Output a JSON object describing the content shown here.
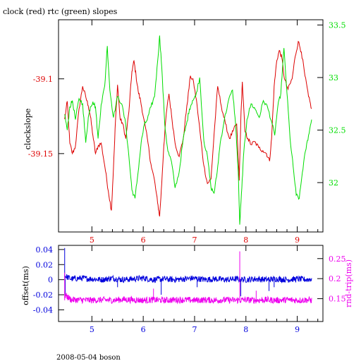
{
  "page_title": "clock (red) rtc (green) slopes",
  "footer": "2008-05-04 boson",
  "colors": {
    "clock": "#dd0000",
    "rtc": "#00dd00",
    "offset": "#0000dd",
    "rndtrip": "#ee00ee",
    "frame": "#000000"
  },
  "chart_data": [
    {
      "type": "line",
      "title": "clock (red) rtc (green) slopes",
      "xlim": [
        4.35,
        9.5
      ],
      "x_ticks": [
        5,
        6,
        7,
        8,
        9
      ],
      "x_tick_labels": [
        "5",
        "6",
        "7",
        "8",
        "9"
      ],
      "left_axis": {
        "label": "clockslope",
        "ylim": [
          -39.2024,
          -39.0605
        ],
        "ticks": [
          -39.15,
          -39.1
        ],
        "tick_labels": [
          "-39.15",
          "-39.1"
        ],
        "color": "#dd0000"
      },
      "right_axis": {
        "label": "",
        "ylim": [
          31.53,
          33.55
        ],
        "ticks": [
          32,
          32.5,
          33,
          33.5
        ],
        "tick_labels": [
          "32",
          "32.5",
          "33",
          "33.5"
        ],
        "color": "#00dd00"
      },
      "series": [
        {
          "axis": "left",
          "color": "#dd0000",
          "x": [
            4.47,
            4.52,
            4.57,
            4.62,
            4.68,
            4.75,
            4.82,
            4.88,
            4.93,
            4.97,
            5.02,
            5.07,
            5.12,
            5.18,
            5.25,
            5.32,
            5.38,
            5.42,
            5.46,
            5.5,
            5.55,
            5.6,
            5.66,
            5.72,
            5.78,
            5.82,
            5.86,
            5.9,
            5.95,
            6.0,
            6.08,
            6.15,
            6.22,
            6.28,
            6.32,
            6.36,
            6.4,
            6.45,
            6.5,
            6.55,
            6.62,
            6.7,
            6.78,
            6.85,
            6.92,
            6.98,
            7.05,
            7.12,
            7.18,
            7.25,
            7.32,
            7.38,
            7.45,
            7.52,
            7.6,
            7.68,
            7.75,
            7.82,
            7.87,
            7.9,
            7.93,
            7.98,
            8.04,
            8.1,
            8.17,
            8.25,
            8.33,
            8.4,
            8.46,
            8.5,
            8.55,
            8.6,
            8.65,
            8.7,
            8.75,
            8.82,
            8.9,
            8.96,
            9.02,
            9.08,
            9.15,
            9.22,
            9.28
          ],
          "y": [
            -39.127,
            -39.115,
            -39.143,
            -39.15,
            -39.145,
            -39.12,
            -39.105,
            -39.112,
            -39.118,
            -39.125,
            -39.138,
            -39.15,
            -39.145,
            -39.143,
            -39.158,
            -39.175,
            -39.188,
            -39.16,
            -39.128,
            -39.104,
            -39.127,
            -39.13,
            -39.14,
            -39.122,
            -39.095,
            -39.088,
            -39.098,
            -39.108,
            -39.115,
            -39.125,
            -39.14,
            -39.157,
            -39.168,
            -39.183,
            -39.192,
            -39.17,
            -39.145,
            -39.123,
            -39.11,
            -39.124,
            -39.143,
            -39.152,
            -39.14,
            -39.118,
            -39.098,
            -39.102,
            -39.118,
            -39.14,
            -39.158,
            -39.17,
            -39.167,
            -39.137,
            -39.105,
            -39.118,
            -39.13,
            -39.14,
            -39.135,
            -39.13,
            -39.168,
            -39.128,
            -39.102,
            -39.135,
            -39.14,
            -39.144,
            -39.142,
            -39.146,
            -39.148,
            -39.15,
            -39.155,
            -39.14,
            -39.105,
            -39.088,
            -39.081,
            -39.086,
            -39.1,
            -39.107,
            -39.1,
            -39.085,
            -39.075,
            -39.082,
            -39.098,
            -39.112,
            -39.12
          ]
        },
        {
          "axis": "right",
          "color": "#00dd00",
          "x": [
            4.47,
            4.52,
            4.57,
            4.62,
            4.68,
            4.75,
            4.82,
            4.88,
            4.93,
            4.97,
            5.02,
            5.07,
            5.12,
            5.18,
            5.25,
            5.3,
            5.35,
            5.42,
            5.5,
            5.58,
            5.66,
            5.72,
            5.78,
            5.84,
            5.9,
            5.96,
            6.02,
            6.08,
            6.15,
            6.22,
            6.28,
            6.32,
            6.36,
            6.42,
            6.48,
            6.55,
            6.62,
            6.7,
            6.78,
            6.84,
            6.9,
            6.96,
            7.02,
            7.1,
            7.18,
            7.25,
            7.32,
            7.38,
            7.44,
            7.5,
            7.58,
            7.66,
            7.74,
            7.8,
            7.85,
            7.88,
            7.92,
            7.96,
            8.02,
            8.1,
            8.18,
            8.26,
            8.34,
            8.42,
            8.5,
            8.56,
            8.62,
            8.68,
            8.74,
            8.8,
            8.86,
            8.92,
            8.98,
            9.04,
            9.1,
            9.16,
            9.22,
            9.28
          ],
          "y": [
            32.65,
            32.5,
            32.72,
            32.78,
            32.6,
            32.8,
            32.75,
            32.38,
            32.62,
            32.72,
            32.77,
            32.72,
            32.42,
            32.74,
            32.92,
            33.3,
            32.88,
            32.62,
            32.82,
            32.75,
            32.55,
            32.25,
            31.93,
            31.85,
            32.1,
            32.38,
            32.55,
            32.6,
            32.72,
            32.82,
            33.15,
            33.4,
            33.1,
            32.55,
            32.3,
            32.2,
            31.95,
            32.1,
            32.42,
            32.55,
            32.7,
            32.78,
            32.82,
            33.0,
            32.4,
            32.25,
            31.95,
            31.9,
            32.1,
            32.38,
            32.6,
            32.78,
            32.88,
            32.55,
            32.1,
            31.6,
            31.95,
            32.3,
            32.6,
            32.75,
            32.7,
            32.62,
            32.78,
            32.72,
            32.58,
            32.45,
            32.72,
            32.85,
            33.28,
            32.85,
            32.42,
            32.15,
            31.88,
            31.85,
            32.1,
            32.3,
            32.45,
            32.6
          ]
        }
      ]
    },
    {
      "type": "line",
      "xlim": [
        4.35,
        9.5
      ],
      "x_ticks": [
        5,
        6,
        7,
        8,
        9
      ],
      "x_tick_labels": [
        "5",
        "6",
        "7",
        "8",
        "9"
      ],
      "left_axis": {
        "label": "offset(ms)",
        "ylim": [
          -0.0555,
          0.0455
        ],
        "ticks": [
          -0.04,
          -0.02,
          0,
          0.02,
          0.04
        ],
        "tick_labels": [
          "-0.04",
          "-0.02",
          "0",
          "0.02",
          "0.04"
        ],
        "color": "#0000dd"
      },
      "right_axis": {
        "label": "rnd-trip(ms)",
        "ylim": [
          0.093,
          0.283
        ],
        "ticks": [
          0.15,
          0.2,
          0.25
        ],
        "tick_labels": [
          "0.15",
          "0.2",
          "0.25"
        ],
        "color": "#ee00ee"
      },
      "series": [
        {
          "axis": "left",
          "color": "#0000dd",
          "x": [
            4.47,
            4.6,
            4.8,
            5.0,
            5.2,
            5.4,
            5.6,
            5.8,
            6.0,
            6.2,
            6.4,
            6.6,
            6.8,
            7.0,
            7.2,
            7.4,
            7.6,
            7.8,
            8.0,
            8.2,
            8.4,
            8.6,
            8.8,
            9.0,
            9.2,
            9.28
          ],
          "y": [
            0.005,
            0.001,
            0.002,
            0.001,
            0.0,
            0.002,
            0.0,
            0.001,
            0.002,
            0.0,
            0.001,
            0.0,
            0.001,
            0.002,
            0.0,
            0.001,
            0.0,
            0.001,
            0.0,
            0.001,
            0.0,
            0.001,
            0.0,
            0.001,
            0.0,
            0.001
          ],
          "noise": 0.004,
          "base_mean": 0.001,
          "spikes": [
            {
              "x": 4.47,
              "y": 0.042
            },
            {
              "x": 4.48,
              "y": -0.024
            },
            {
              "x": 5.5,
              "y": -0.01
            },
            {
              "x": 6.35,
              "y": -0.02
            },
            {
              "x": 7.05,
              "y": -0.01
            },
            {
              "x": 7.9,
              "y": -0.022
            },
            {
              "x": 8.45,
              "y": -0.015
            },
            {
              "x": 8.55,
              "y": -0.01
            }
          ]
        },
        {
          "axis": "right",
          "color": "#ee00ee",
          "x": [
            4.47,
            4.6,
            4.8,
            5.0,
            5.2,
            5.4,
            5.6,
            5.8,
            6.0,
            6.2,
            6.4,
            6.6,
            6.8,
            7.0,
            7.2,
            7.4,
            7.6,
            7.8,
            8.0,
            8.2,
            8.4,
            8.6,
            8.8,
            9.0,
            9.2,
            9.28
          ],
          "y": [
            0.16,
            0.147,
            0.147,
            0.146,
            0.147,
            0.146,
            0.148,
            0.147,
            0.146,
            0.147,
            0.146,
            0.147,
            0.147,
            0.146,
            0.147,
            0.146,
            0.147,
            0.146,
            0.147,
            0.146,
            0.147,
            0.146,
            0.147,
            0.146,
            0.147,
            0.146
          ],
          "noise": 0.008,
          "base_mean": 0.146,
          "spikes": [
            {
              "x": 4.47,
              "y": 0.215
            },
            {
              "x": 7.88,
              "y": 0.268
            },
            {
              "x": 6.2,
              "y": 0.175
            },
            {
              "x": 8.2,
              "y": 0.17
            }
          ]
        }
      ]
    }
  ]
}
